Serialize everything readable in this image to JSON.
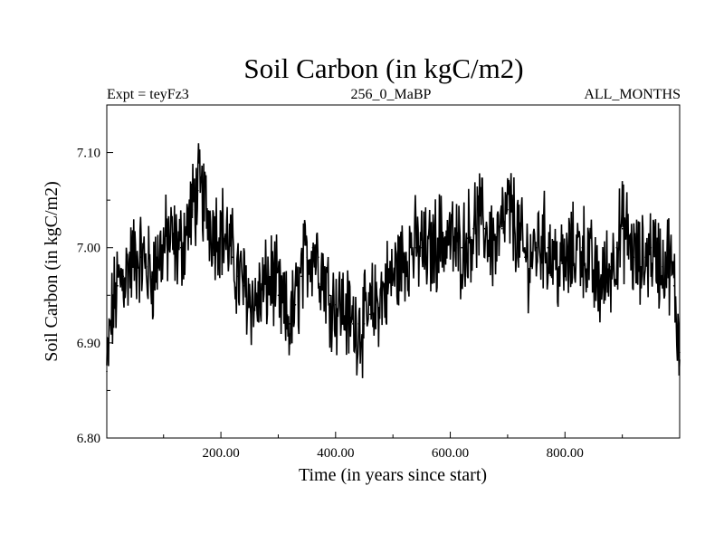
{
  "chart_data": {
    "type": "line",
    "title": "Soil Carbon (in kgC/m2)",
    "subtitle_left": "Expt = teyFz3",
    "subtitle_center": "256_0_MaBP",
    "subtitle_right": "ALL_MONTHS",
    "xlabel": "Time (in years since start)",
    "ylabel": "Soil Carbon (in kgC/m2)",
    "xlim": [
      1,
      1000
    ],
    "ylim": [
      6.8,
      7.15
    ],
    "x_ticks": [
      200,
      400,
      600,
      800
    ],
    "x_tick_labels": [
      "200.00",
      "400.00",
      "600.00",
      "800.00"
    ],
    "y_ticks": [
      6.8,
      6.9,
      7.0,
      7.1
    ],
    "y_tick_labels": [
      "6.80",
      "6.90",
      "7.00",
      "7.10"
    ],
    "grid": false,
    "legend": "none",
    "line_color": "#000000",
    "series": [
      {
        "x": [
          1,
          10,
          20,
          30,
          40,
          50,
          60,
          70,
          80,
          90,
          100,
          110,
          120,
          130,
          140,
          150,
          160,
          170,
          180,
          190,
          200,
          210,
          220,
          230,
          240,
          250,
          260,
          270,
          280,
          290,
          300,
          310,
          320,
          330,
          340,
          350,
          360,
          370,
          380,
          390,
          400,
          410,
          420,
          430,
          440,
          450,
          460,
          470,
          480,
          490,
          500,
          510,
          520,
          530,
          540,
          550,
          560,
          570,
          580,
          590,
          600,
          610,
          620,
          630,
          640,
          650,
          660,
          670,
          680,
          690,
          700,
          710,
          720,
          730,
          740,
          750,
          760,
          770,
          780,
          790,
          800,
          810,
          820,
          830,
          840,
          850,
          860,
          870,
          880,
          890,
          900,
          910,
          920,
          930,
          940,
          950,
          960,
          970,
          980,
          990,
          1000
        ],
        "values": [
          6.87,
          6.93,
          6.96,
          6.97,
          6.98,
          6.99,
          6.99,
          6.98,
          6.97,
          6.99,
          7.0,
          7.01,
          7.0,
          7.0,
          7.02,
          7.04,
          7.06,
          7.05,
          7.03,
          7.02,
          7.02,
          7.01,
          6.99,
          6.97,
          6.96,
          6.95,
          6.94,
          6.95,
          6.96,
          6.97,
          6.95,
          6.93,
          6.92,
          6.94,
          6.97,
          6.99,
          7.0,
          6.99,
          6.97,
          6.95,
          6.94,
          6.94,
          6.93,
          6.92,
          6.92,
          6.92,
          6.93,
          6.94,
          6.95,
          6.96,
          6.97,
          6.98,
          6.99,
          7.0,
          7.0,
          7.0,
          6.99,
          7.0,
          7.01,
          7.01,
          7.01,
          7.0,
          7.0,
          7.01,
          7.02,
          7.03,
          7.02,
          7.01,
          7.0,
          7.02,
          7.04,
          7.03,
          7.01,
          6.99,
          6.99,
          7.0,
          7.01,
          7.0,
          6.99,
          6.98,
          6.98,
          6.99,
          7.0,
          7.0,
          6.99,
          6.97,
          6.96,
          6.97,
          6.98,
          7.0,
          7.02,
          7.01,
          6.99,
          6.98,
          6.99,
          7.0,
          6.99,
          6.98,
          6.99,
          6.96,
          6.89
        ]
      }
    ]
  }
}
